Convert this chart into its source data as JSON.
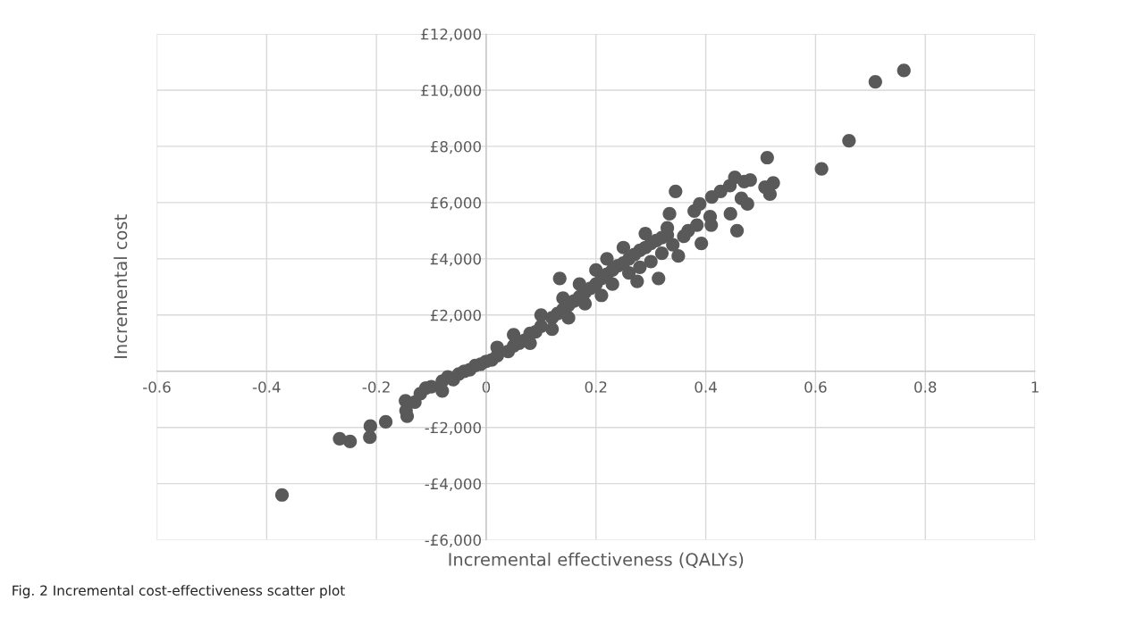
{
  "chart_data": {
    "type": "scatter",
    "xlabel": "Incremental effectiveness (QALYs)",
    "ylabel": "Incremental cost",
    "annotations": [
      "Fig. 2 Incremental cost-effectiveness scatter plot"
    ],
    "xlim": [
      -0.6,
      1
    ],
    "xticks": [
      -0.6,
      -0.4,
      -0.2,
      0,
      0.2,
      0.4,
      0.6,
      0.8,
      1
    ],
    "ylim": [
      -6000,
      12000
    ],
    "yticks": [
      {
        "value": -6000,
        "label": "-£6,000"
      },
      {
        "value": -4000,
        "label": "-£4,000"
      },
      {
        "value": -2000,
        "label": "-£2,000"
      },
      {
        "value": 0,
        "label": null
      },
      {
        "value": 2000,
        "label": "£2,000"
      },
      {
        "value": 4000,
        "label": "£4,000"
      },
      {
        "value": 6000,
        "label": "£6,000"
      },
      {
        "value": 8000,
        "label": "£8,000"
      },
      {
        "value": 10000,
        "label": "£10,000"
      },
      {
        "value": 12000,
        "label": "£12,000"
      }
    ],
    "grid": true,
    "marker": "circle",
    "series": [
      {
        "color": "#595959",
        "x": [
          -0.372,
          -0.267,
          -0.248,
          -0.212,
          -0.211,
          -0.183,
          -0.147,
          -0.146,
          -0.144,
          -0.13,
          -0.12,
          -0.11,
          -0.1,
          -0.08,
          -0.08,
          -0.07,
          -0.06,
          -0.05,
          -0.04,
          -0.03,
          -0.02,
          -0.01,
          0,
          0.01,
          0.02,
          0.02,
          0.04,
          0.05,
          0.05,
          0.06,
          0.07,
          0.08,
          0.08,
          0.09,
          0.1,
          0.1,
          0.12,
          0.12,
          0.13,
          0.134,
          0.14,
          0.14,
          0.15,
          0.15,
          0.16,
          0.17,
          0.17,
          0.18,
          0.18,
          0.19,
          0.2,
          0.2,
          0.21,
          0.21,
          0.22,
          0.22,
          0.23,
          0.23,
          0.24,
          0.25,
          0.25,
          0.26,
          0.26,
          0.27,
          0.275,
          0.28,
          0.28,
          0.29,
          0.29,
          0.3,
          0.3,
          0.31,
          0.314,
          0.32,
          0.32,
          0.33,
          0.33,
          0.334,
          0.34,
          0.345,
          0.35,
          0.36,
          0.368,
          0.379,
          0.384,
          0.389,
          0.392,
          0.408,
          0.41,
          0.411,
          0.427,
          0.444,
          0.445,
          0.453,
          0.457,
          0.465,
          0.47,
          0.476,
          0.481,
          0.508,
          0.512,
          0.517,
          0.523,
          0.611,
          0.661,
          0.709,
          0.761
        ],
        "values": [
          -4400,
          -2400,
          -2500,
          -2350,
          -1950,
          -1800,
          -1050,
          -1400,
          -1600,
          -1100,
          -800,
          -600,
          -550,
          -350,
          -700,
          -200,
          -300,
          -100,
          0,
          50,
          200,
          250,
          350,
          400,
          550,
          850,
          700,
          900,
          1300,
          1000,
          1100,
          1350,
          1000,
          1400,
          1600,
          2000,
          1900,
          1500,
          2050,
          3300,
          2200,
          2600,
          2350,
          1900,
          2500,
          2650,
          3100,
          2800,
          2400,
          2950,
          3100,
          3600,
          3300,
          2700,
          3450,
          4000,
          3600,
          3100,
          3750,
          3850,
          4400,
          4000,
          3500,
          4150,
          3200,
          4300,
          3700,
          4400,
          4900,
          4550,
          3900,
          4650,
          3300,
          4750,
          4200,
          4850,
          5100,
          5600,
          4500,
          6400,
          4100,
          4800,
          5000,
          5700,
          5200,
          5950,
          4550,
          5500,
          5200,
          6200,
          6400,
          6600,
          5600,
          6900,
          5000,
          6150,
          6750,
          5950,
          6800,
          6550,
          7600,
          6300,
          6700,
          7200,
          8200,
          10300,
          10700
        ]
      }
    ]
  }
}
